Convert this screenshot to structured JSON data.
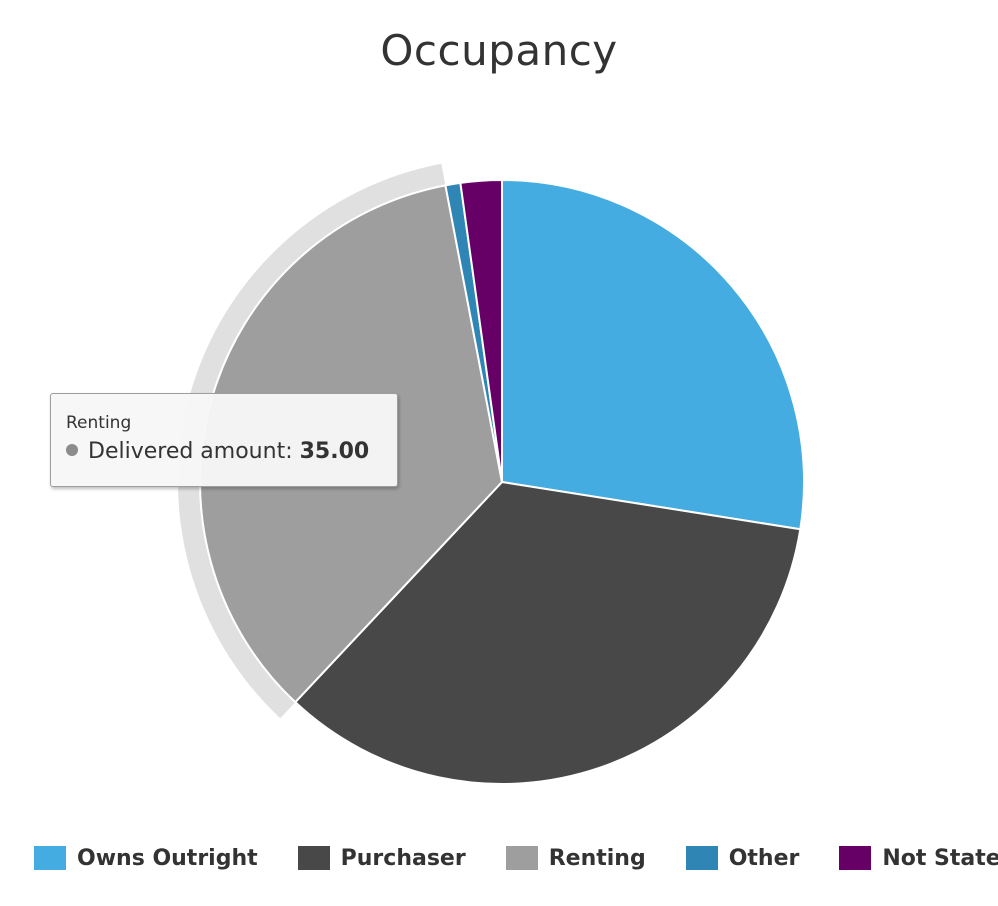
{
  "chart_data": {
    "type": "pie",
    "title": "Occupancy",
    "series_name": "Delivered amount",
    "slices": [
      {
        "name": "Owns Outright",
        "value": 27.5,
        "color": "#44ACE0"
      },
      {
        "name": "Purchaser",
        "value": 34.5,
        "color": "#484848"
      },
      {
        "name": "Renting",
        "value": 35.0,
        "color": "#9E9E9E"
      },
      {
        "name": "Other",
        "value": 0.8,
        "color": "#2F86B4"
      },
      {
        "name": "Not Stated",
        "value": 2.2,
        "color": "#660066"
      }
    ],
    "hovered_slice": "Renting",
    "legend_position": "bottom"
  },
  "tooltip": {
    "title": "Renting",
    "series_label": "Delivered amount:",
    "value": "35.00",
    "dot_color": "#8C8C8C"
  }
}
